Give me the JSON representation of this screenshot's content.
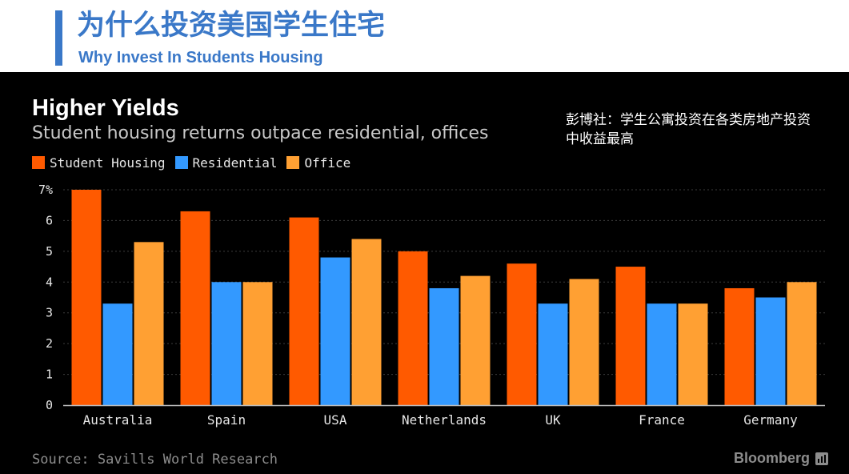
{
  "header": {
    "title": "为什么投资美国学生住宅",
    "subtitle": "Why Invest In Students Housing",
    "accent_color": "#3a78c8"
  },
  "annotation": {
    "text": "彭博社：学生公寓投资在各类房地产投资中收益最高"
  },
  "source": {
    "text": "Source: Savills World Research"
  },
  "brand": {
    "name": "Bloomberg",
    "icon": "bloomberg-bar-icon"
  },
  "chart_data": {
    "type": "bar",
    "title": "Higher Yields",
    "subtitle": "Student housing returns outpace residential, offices",
    "xlabel": "",
    "ylabel": "",
    "ylim": [
      0,
      7
    ],
    "yticks": [
      "0",
      "1",
      "2",
      "3",
      "4",
      "5",
      "6",
      "7%"
    ],
    "grid": true,
    "legend_position": "top-left",
    "categories": [
      "Australia",
      "Spain",
      "USA",
      "Netherlands",
      "UK",
      "France",
      "Germany"
    ],
    "series": [
      {
        "name": "Student Housing",
        "color": "#ff5a00",
        "values": [
          7.0,
          6.3,
          6.1,
          5.0,
          4.6,
          4.5,
          3.8
        ]
      },
      {
        "name": "Residential",
        "color": "#3399ff",
        "values": [
          3.3,
          4.0,
          4.8,
          3.8,
          3.3,
          3.3,
          3.5
        ]
      },
      {
        "name": "Office",
        "color": "#ffa033",
        "values": [
          5.3,
          4.0,
          5.4,
          4.2,
          4.1,
          3.3,
          4.0
        ]
      }
    ]
  }
}
